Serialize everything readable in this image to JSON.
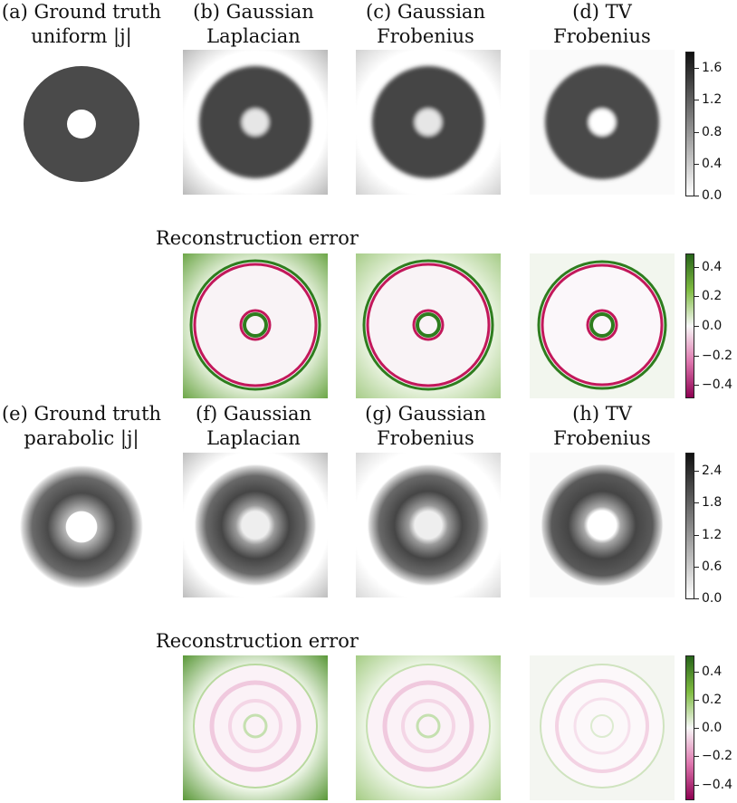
{
  "row1": {
    "labels": [
      {
        "line1": "(a) Ground truth",
        "line2": "uniform |j|"
      },
      {
        "line1": "(b) Gaussian",
        "line2": "Laplacian"
      },
      {
        "line1": "(c) Gaussian",
        "line2": "Frobenius"
      },
      {
        "line1": "(d) TV",
        "line2": "Frobenius"
      }
    ],
    "colorbar_ticks": [
      "1.6",
      "1.2",
      "0.8",
      "0.4",
      "0.0"
    ]
  },
  "error1": {
    "title": "Reconstruction error",
    "colorbar_ticks": [
      "0.4",
      "0.2",
      "0.0",
      "−0.2",
      "−0.4"
    ]
  },
  "row2": {
    "labels": [
      {
        "line1": "(e) Ground truth",
        "line2": "parabolic |j|"
      },
      {
        "line1": "(f) Gaussian",
        "line2": "Laplacian"
      },
      {
        "line1": "(g) Gaussian",
        "line2": "Frobenius"
      },
      {
        "line1": "(h) TV",
        "line2": "Frobenius"
      }
    ],
    "colorbar_ticks": [
      "2.4",
      "1.8",
      "1.2",
      "0.6",
      "0.0"
    ]
  },
  "error2": {
    "title": "Reconstruction error",
    "colorbar_ticks": [
      "0.4",
      "0.2",
      "0.0",
      "−0.2",
      "−0.4"
    ]
  },
  "colors": {
    "gray_dark": "#4a4a4a",
    "green": "#2e7d1e",
    "light_green": "#e8f3df",
    "magenta": "#c2185b"
  }
}
